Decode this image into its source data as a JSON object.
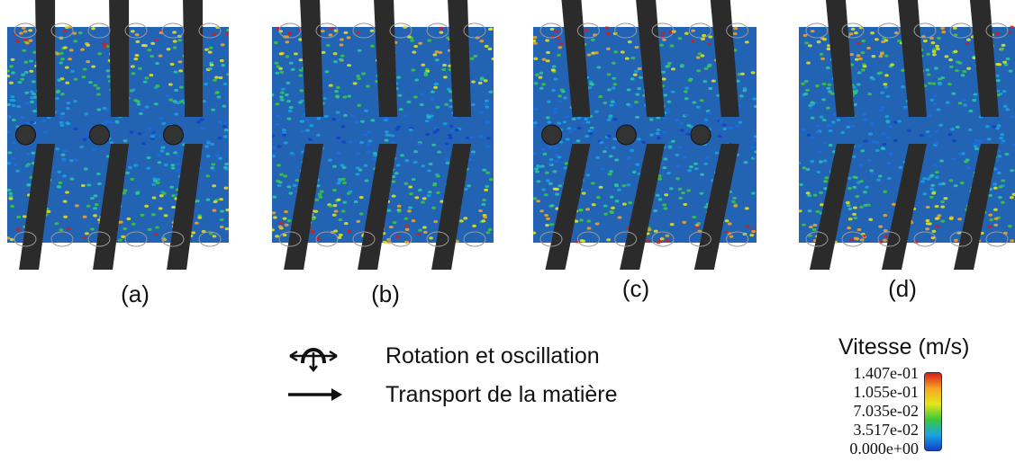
{
  "panels": [
    {
      "caption": "(a)",
      "screws": 3,
      "shafts": true
    },
    {
      "caption": "(b)",
      "screws": 3,
      "shafts": false
    },
    {
      "caption": "(c)",
      "screws": 3,
      "shafts": true
    },
    {
      "caption": "(d)",
      "screws": 3,
      "shafts": false
    }
  ],
  "legend": {
    "rotation_label": "Rotation et oscillation",
    "transport_label": "Transport de la matière"
  },
  "colorbar": {
    "title": "Vitesse (m/s)",
    "ticks": [
      "1.407e-01",
      "1.055e-01",
      "7.035e-02",
      "3.517e-02",
      "0.000e+00"
    ],
    "colors": [
      "#d81b1b",
      "#f5a623",
      "#e6e619",
      "#3cc83c",
      "#1aa3e0",
      "#1040c8"
    ]
  }
}
